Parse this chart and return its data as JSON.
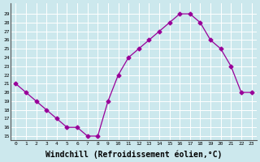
{
  "x": [
    0,
    1,
    2,
    3,
    4,
    5,
    6,
    7,
    8,
    9,
    10,
    11,
    12,
    13,
    14,
    15,
    16,
    17,
    18,
    19,
    20,
    21,
    22,
    23
  ],
  "y": [
    21,
    20,
    19,
    18,
    17,
    16,
    16,
    15,
    15,
    19,
    22,
    24,
    25,
    26,
    27,
    28,
    29,
    29,
    28,
    26,
    25,
    23,
    20,
    20
  ],
  "line_color": "#990099",
  "marker": "D",
  "marker_size": 2.5,
  "background_color": "#cce8ed",
  "grid_color": "#ffffff",
  "xlabel": "Windchill (Refroidissement éolien,°C)",
  "xlabel_fontsize": 7,
  "ylabel_ticks": [
    15,
    16,
    17,
    18,
    19,
    20,
    21,
    22,
    23,
    24,
    25,
    26,
    27,
    28,
    29
  ],
  "xlim": [
    -0.5,
    23.5
  ],
  "ylim": [
    14.5,
    30.2
  ],
  "xtick_labels": [
    "0",
    "1",
    "2",
    "3",
    "4",
    "5",
    "6",
    "7",
    "8",
    "9",
    "10",
    "11",
    "12",
    "13",
    "14",
    "15",
    "16",
    "17",
    "18",
    "19",
    "20",
    "21",
    "22",
    "23"
  ]
}
